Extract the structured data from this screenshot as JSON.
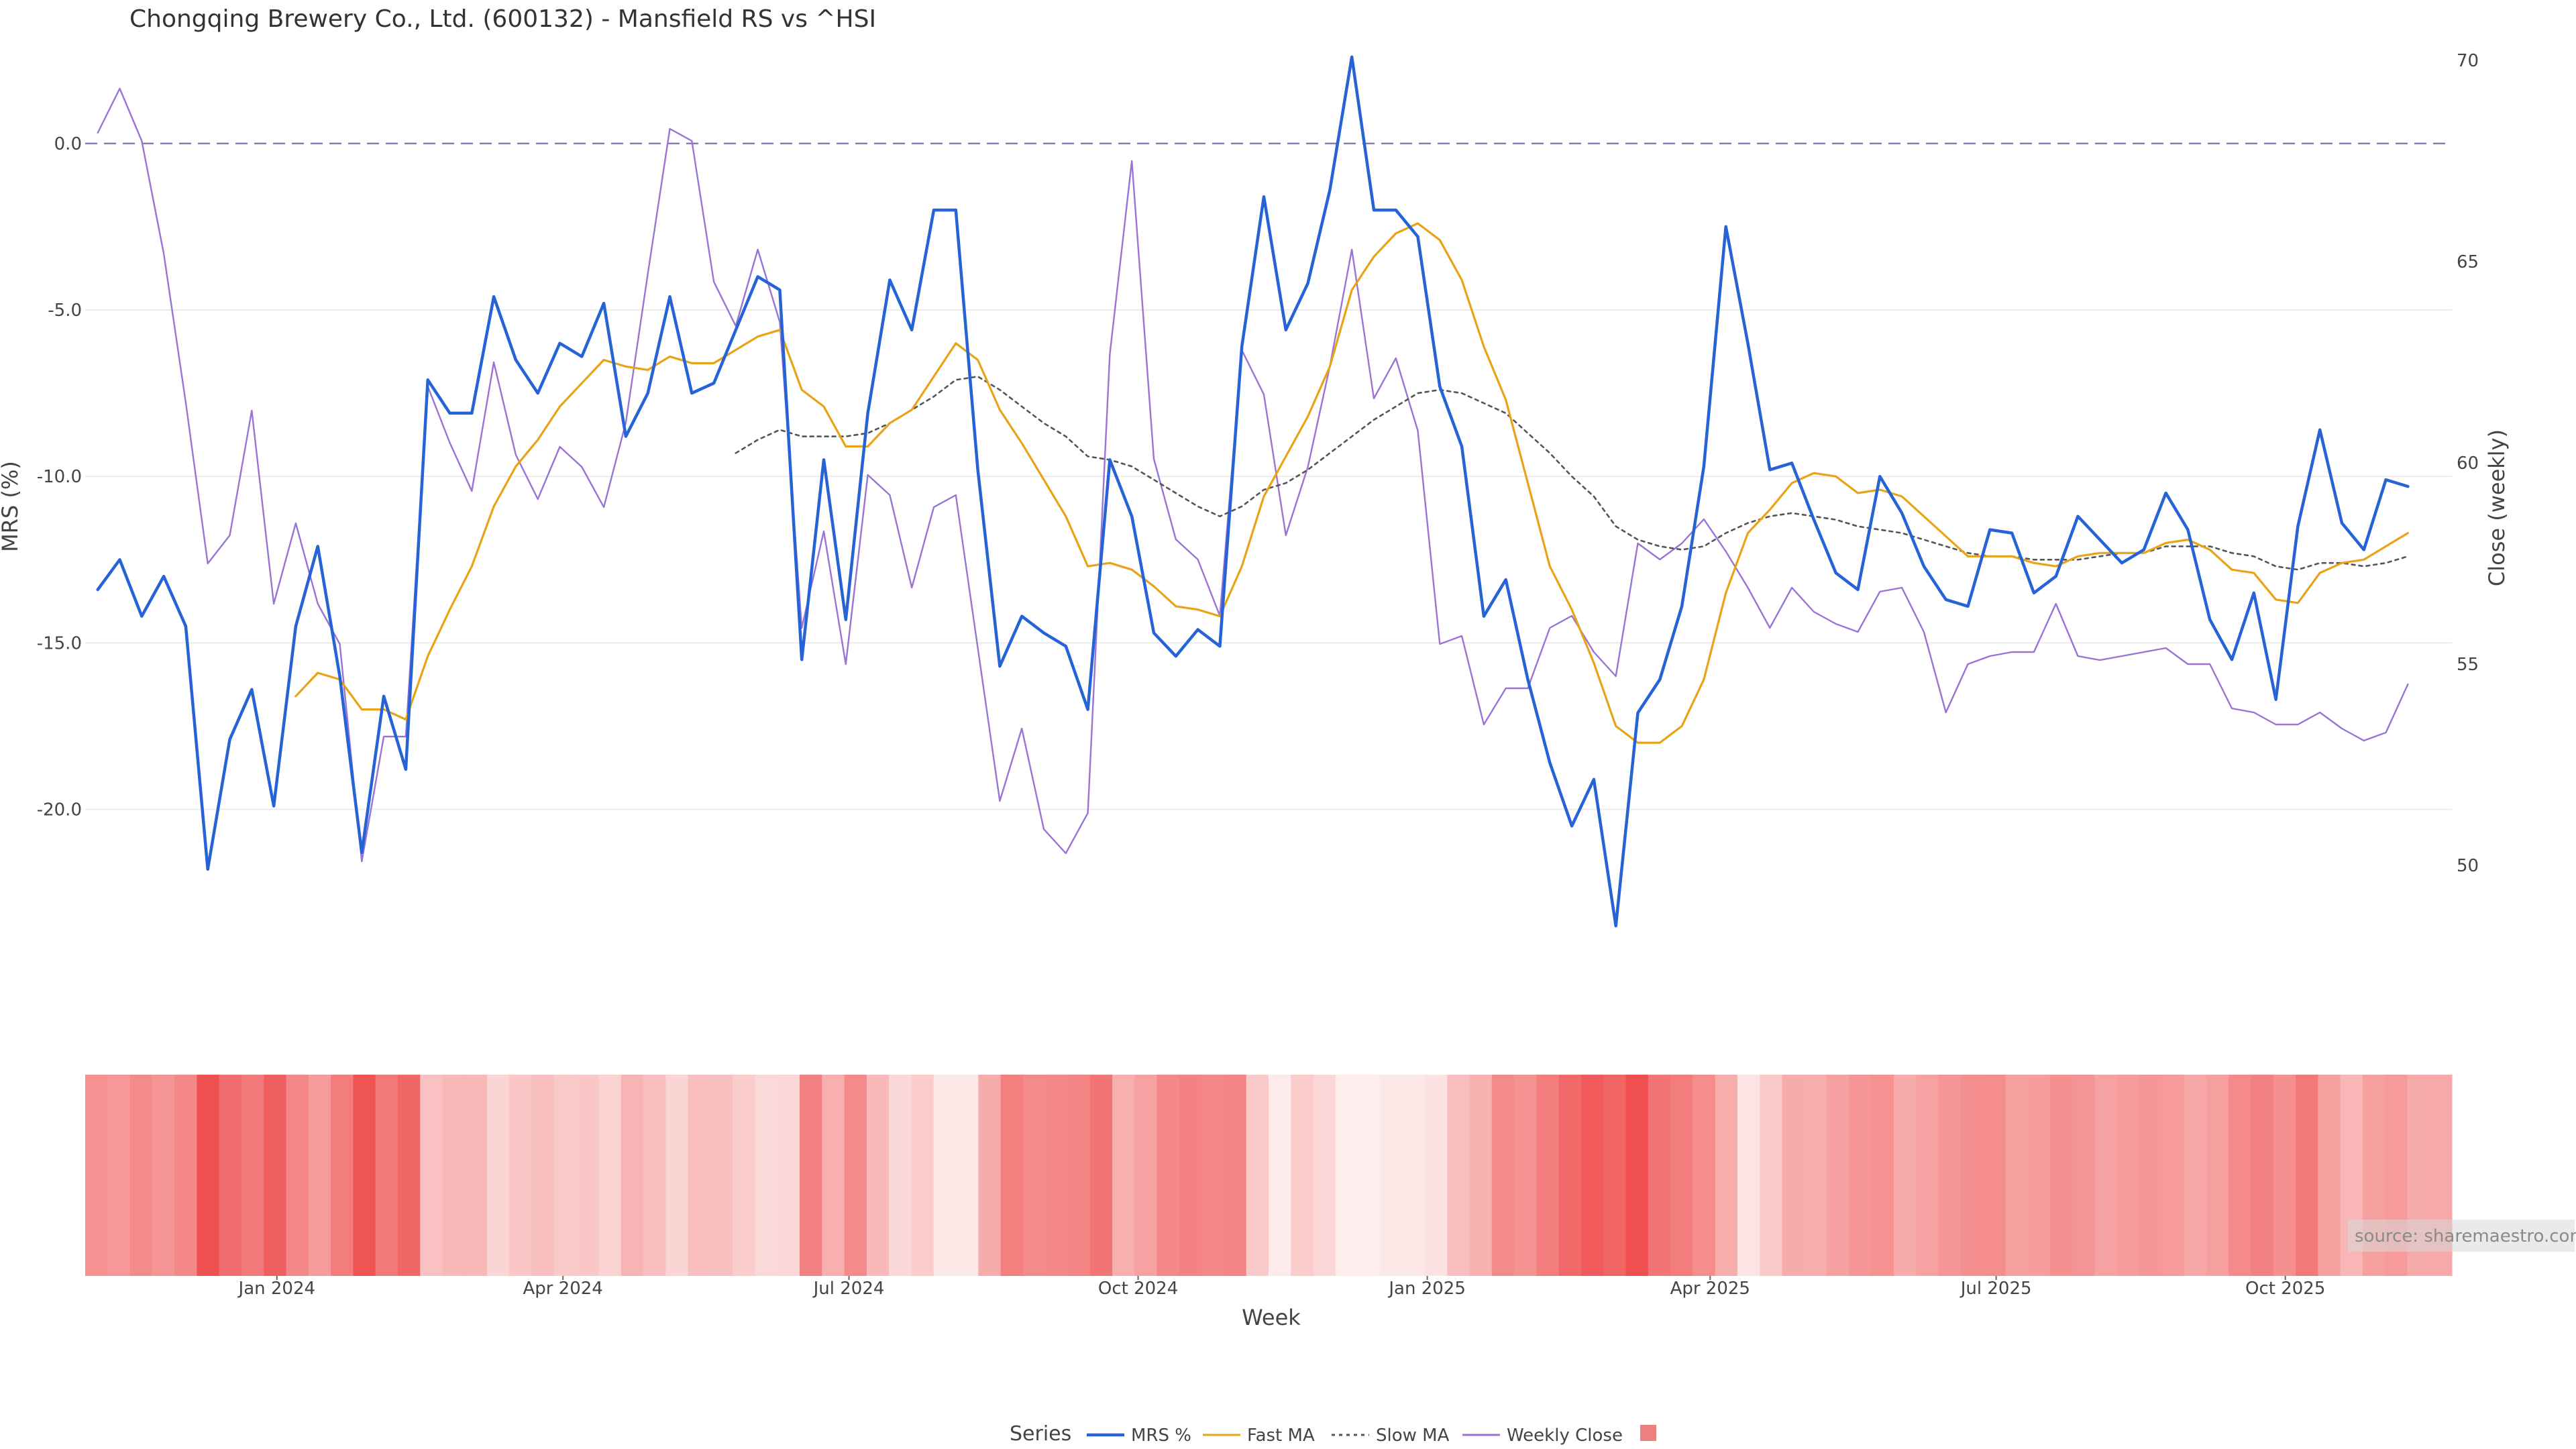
{
  "chart_data": {
    "type": "line",
    "title": "Chongqing Brewery Co., Ltd. (600132) - Mansfield RS vs ^HSI",
    "xlabel": "Week",
    "ylabel_left": "MRS (%)",
    "ylabel_right": "Close (weekly)",
    "ylim_left": [
      -24.1,
      3.1
    ],
    "ylim_right": [
      48,
      70.5
    ],
    "yticks_left": [
      "0.0",
      "-5.0",
      "-10.0",
      "-15.0",
      "-20.0"
    ],
    "ytick_values_left": [
      0,
      -5,
      -10,
      -15,
      -20
    ],
    "yticks_right": [
      "70",
      "65",
      "60",
      "55",
      "50"
    ],
    "ytick_values_right": [
      70,
      65,
      60,
      55,
      50
    ],
    "x_start": "2023-11-05",
    "x_step_days": 7,
    "x_range": [
      "2023-11-01",
      "2025-11-23"
    ],
    "xticks": [
      {
        "label": "Jan 2024",
        "date": "2024-01-01"
      },
      {
        "label": "Apr 2024",
        "date": "2024-04-01"
      },
      {
        "label": "Jul 2024",
        "date": "2024-07-01"
      },
      {
        "label": "Oct 2024",
        "date": "2024-10-01"
      },
      {
        "label": "Jan 2025",
        "date": "2025-01-01"
      },
      {
        "label": "Apr 2025",
        "date": "2025-04-01"
      },
      {
        "label": "Jul 2025",
        "date": "2025-07-01"
      },
      {
        "label": "Oct 2025",
        "date": "2025-10-01"
      }
    ],
    "reference_line": {
      "y": 0,
      "axis": "left",
      "style": "dashed"
    },
    "grid": true,
    "legend_title": "Series",
    "legend_position": "bottom-center",
    "series": [
      {
        "name": "MRS %",
        "axis": "left",
        "color": "#2563d6",
        "style": "solid",
        "values": [
          -13.4,
          -12.5,
          -14.2,
          -13,
          -14.5,
          -21.8,
          -17.9,
          -16.4,
          -19.9,
          -14.5,
          -12.1,
          -16,
          -21.3,
          -16.6,
          -18.8,
          -7.1,
          -8.1,
          -8.1,
          -4.6,
          -6.5,
          -7.5,
          -6,
          -6.4,
          -4.8,
          -8.8,
          -7.5,
          -4.6,
          -7.5,
          -7.2,
          -5.6,
          -4,
          -4.4,
          -15.5,
          -9.5,
          -14.3,
          -8.1,
          -4.1,
          -5.6,
          -2,
          -2,
          -9.8,
          -15.7,
          -14.2,
          -14.7,
          -15.1,
          -17,
          -9.5,
          -11.2,
          -14.7,
          -15.4,
          -14.6,
          -15.1,
          -6.1,
          -1.6,
          -5.6,
          -4.2,
          -1.4,
          2.6,
          -2,
          -2,
          -2.8,
          -7.3,
          -9.1,
          -14.2,
          -13.1,
          -16.1,
          -18.6,
          -20.5,
          -19.1,
          -23.5,
          -17.1,
          -16.1,
          -13.9,
          -9.7,
          -2.5,
          -6,
          -9.8,
          -9.6,
          -11.3,
          -12.9,
          -13.4,
          -10,
          -11.1,
          -12.7,
          -13.7,
          -13.9,
          -11.6,
          -11.7,
          -13.5,
          -13,
          -11.2,
          -11.9,
          -12.6,
          -12.2,
          -10.5,
          -11.6,
          -14.3,
          -15.5,
          -13.5,
          -16.7,
          -11.5,
          -8.6,
          -11.4,
          -12.2,
          -10.1,
          -10.3
        ]
      },
      {
        "name": "Fast MA",
        "axis": "left",
        "color": "#e8a317",
        "style": "solid",
        "values": [
          null,
          null,
          null,
          null,
          null,
          null,
          null,
          null,
          null,
          -16.6,
          -15.9,
          -16.1,
          -17,
          -17,
          -17.3,
          -15.4,
          -14,
          -12.7,
          -10.9,
          -9.7,
          -8.9,
          -7.9,
          -7.2,
          -6.5,
          -6.7,
          -6.8,
          -6.4,
          -6.6,
          -6.6,
          -6.2,
          -5.8,
          -5.6,
          -7.4,
          -7.9,
          -9.1,
          -9.1,
          -8.4,
          -8,
          -7,
          -6,
          -6.5,
          -8,
          -9,
          -10.1,
          -11.2,
          -12.7,
          -12.6,
          -12.8,
          -13.3,
          -13.9,
          -14,
          -14.2,
          -12.7,
          -10.6,
          -9.4,
          -8.2,
          -6.7,
          -4.4,
          -3.4,
          -2.7,
          -2.4,
          -2.9,
          -4.1,
          -6.1,
          -7.7,
          -10.2,
          -12.7,
          -14,
          -15.6,
          -17.5,
          -18,
          -18,
          -17.5,
          -16.1,
          -13.5,
          -11.7,
          -11,
          -10.2,
          -9.9,
          -10,
          -10.5,
          -10.4,
          -10.6,
          -11.2,
          -11.8,
          -12.4,
          -12.4,
          -12.4,
          -12.6,
          -12.7,
          -12.4,
          -12.3,
          -12.3,
          -12.3,
          -12,
          -11.9,
          -12.2,
          -12.8,
          -12.9,
          -13.7,
          -13.8,
          -12.9,
          -12.6,
          -12.5,
          -12.1,
          -11.7
        ]
      },
      {
        "name": "Slow MA",
        "axis": "left",
        "color": "#555555",
        "style": "dotted",
        "values": [
          null,
          null,
          null,
          null,
          null,
          null,
          null,
          null,
          null,
          null,
          null,
          null,
          null,
          null,
          null,
          null,
          null,
          null,
          null,
          null,
          null,
          null,
          null,
          null,
          null,
          null,
          null,
          null,
          null,
          -9.3,
          -8.9,
          -8.6,
          -8.8,
          -8.8,
          -8.8,
          -8.7,
          -8.4,
          -8,
          -7.6,
          -7.1,
          -7,
          -7.4,
          -7.9,
          -8.4,
          -8.8,
          -9.4,
          -9.5,
          -9.7,
          -10.1,
          -10.5,
          -10.9,
          -11.2,
          -10.9,
          -10.4,
          -10.2,
          -9.8,
          -9.3,
          -8.8,
          -8.3,
          -7.9,
          -7.5,
          -7.4,
          -7.5,
          -7.8,
          -8.1,
          -8.7,
          -9.3,
          -10,
          -10.6,
          -11.5,
          -11.9,
          -12.1,
          -12.2,
          -12.1,
          -11.7,
          -11.4,
          -11.2,
          -11.1,
          -11.2,
          -11.3,
          -11.5,
          -11.6,
          -11.7,
          -11.9,
          -12.1,
          -12.3,
          -12.4,
          -12.4,
          -12.5,
          -12.5,
          -12.5,
          -12.4,
          -12.3,
          -12.3,
          -12.1,
          -12.1,
          -12.1,
          -12.3,
          -12.4,
          -12.7,
          -12.8,
          -12.6,
          -12.6,
          -12.7,
          -12.6,
          -12.4
        ]
      },
      {
        "name": "Weekly Close",
        "axis": "right",
        "color": "#9b73d4",
        "style": "solid",
        "values": [
          68.2,
          69.3,
          68,
          65.2,
          61.5,
          57.5,
          58.2,
          61.3,
          56.5,
          58.5,
          56.5,
          55.5,
          50.1,
          53.2,
          53.2,
          61.9,
          60.5,
          59.3,
          62.5,
          60.2,
          59.1,
          60.4,
          59.9,
          58.9,
          61,
          64.7,
          68.3,
          68,
          64.5,
          63.4,
          65.3,
          63.5,
          55.9,
          58.3,
          55,
          59.7,
          59.2,
          56.9,
          58.9,
          59.2,
          55.4,
          51.6,
          53.4,
          50.9,
          50.3,
          51.3,
          62.7,
          67.5,
          60.1,
          58.1,
          57.6,
          56.2,
          62.8,
          61.7,
          58.2,
          59.9,
          62.4,
          65.3,
          61.6,
          62.6,
          60.8,
          55.5,
          55.7,
          53.5,
          54.4,
          54.4,
          55.9,
          56.2,
          55.3,
          54.7,
          58,
          57.6,
          58,
          58.6,
          57.8,
          56.9,
          55.9,
          56.9,
          56.3,
          56,
          55.8,
          56.8,
          56.9,
          55.8,
          53.8,
          55,
          55.2,
          55.3,
          55.3,
          56.5,
          55.2,
          55.1,
          55.2,
          55.3,
          55.4,
          55,
          55,
          53.9,
          53.8,
          53.5,
          53.5,
          53.8,
          53.4,
          53.1,
          53.3,
          54.5
        ]
      }
    ],
    "heatmap_strip": {
      "description": "MRS heat strip, one colored cell per week",
      "color_low": "#ef4f4f",
      "color_high": "#ffffff"
    }
  },
  "source_label": "source: sharemaestro.com"
}
